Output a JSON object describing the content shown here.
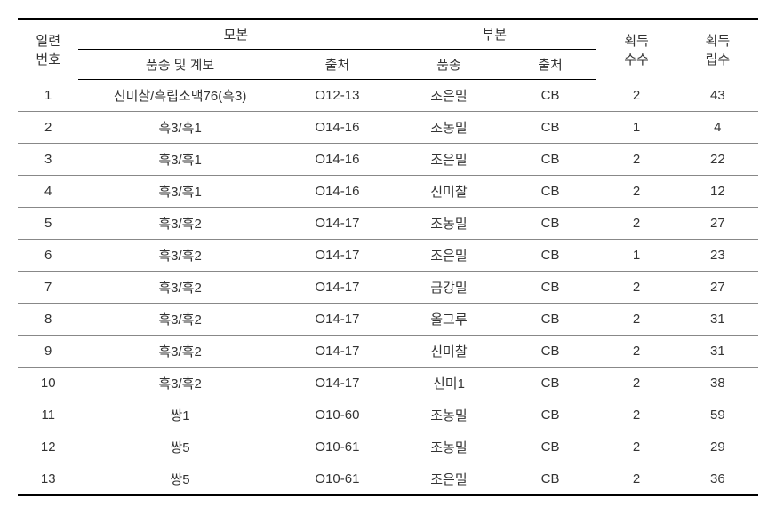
{
  "header": {
    "seq_l1": "일련",
    "seq_l2": "번호",
    "mother": "모본",
    "father": "부본",
    "variety_pedigree": "품종 및 계보",
    "source": "출처",
    "variety": "품종",
    "cnt1_l1": "획득",
    "cnt1_l2": "수수",
    "cnt2_l1": "획득",
    "cnt2_l2": "립수"
  },
  "rows": [
    {
      "seq": "1",
      "mvariety": "신미찰/흑립소맥76(흑3)",
      "msource": "O12-13",
      "fvariety": "조은밀",
      "fsource": "CB",
      "cnt1": "2",
      "cnt2": "43"
    },
    {
      "seq": "2",
      "mvariety": "흑3/흑1",
      "msource": "O14-16",
      "fvariety": "조농밀",
      "fsource": "CB",
      "cnt1": "1",
      "cnt2": "4"
    },
    {
      "seq": "3",
      "mvariety": "흑3/흑1",
      "msource": "O14-16",
      "fvariety": "조은밀",
      "fsource": "CB",
      "cnt1": "2",
      "cnt2": "22"
    },
    {
      "seq": "4",
      "mvariety": "흑3/흑1",
      "msource": "O14-16",
      "fvariety": "신미찰",
      "fsource": "CB",
      "cnt1": "2",
      "cnt2": "12"
    },
    {
      "seq": "5",
      "mvariety": "흑3/흑2",
      "msource": "O14-17",
      "fvariety": "조농밀",
      "fsource": "CB",
      "cnt1": "2",
      "cnt2": "27"
    },
    {
      "seq": "6",
      "mvariety": "흑3/흑2",
      "msource": "O14-17",
      "fvariety": "조은밀",
      "fsource": "CB",
      "cnt1": "1",
      "cnt2": "23"
    },
    {
      "seq": "7",
      "mvariety": "흑3/흑2",
      "msource": "O14-17",
      "fvariety": "금강밀",
      "fsource": "CB",
      "cnt1": "2",
      "cnt2": "27"
    },
    {
      "seq": "8",
      "mvariety": "흑3/흑2",
      "msource": "O14-17",
      "fvariety": "올그루",
      "fsource": "CB",
      "cnt1": "2",
      "cnt2": "31"
    },
    {
      "seq": "9",
      "mvariety": "흑3/흑2",
      "msource": "O14-17",
      "fvariety": "신미찰",
      "fsource": "CB",
      "cnt1": "2",
      "cnt2": "31"
    },
    {
      "seq": "10",
      "mvariety": "흑3/흑2",
      "msource": "O14-17",
      "fvariety": "신미1",
      "fsource": "CB",
      "cnt1": "2",
      "cnt2": "38"
    },
    {
      "seq": "11",
      "mvariety": "쌍1",
      "msource": "O10-60",
      "fvariety": "조농밀",
      "fsource": "CB",
      "cnt1": "2",
      "cnt2": "59"
    },
    {
      "seq": "12",
      "mvariety": "쌍5",
      "msource": "O10-61",
      "fvariety": "조농밀",
      "fsource": "CB",
      "cnt1": "2",
      "cnt2": "29"
    },
    {
      "seq": "13",
      "mvariety": "쌍5",
      "msource": "O10-61",
      "fvariety": "조은밀",
      "fsource": "CB",
      "cnt1": "2",
      "cnt2": "36"
    }
  ]
}
